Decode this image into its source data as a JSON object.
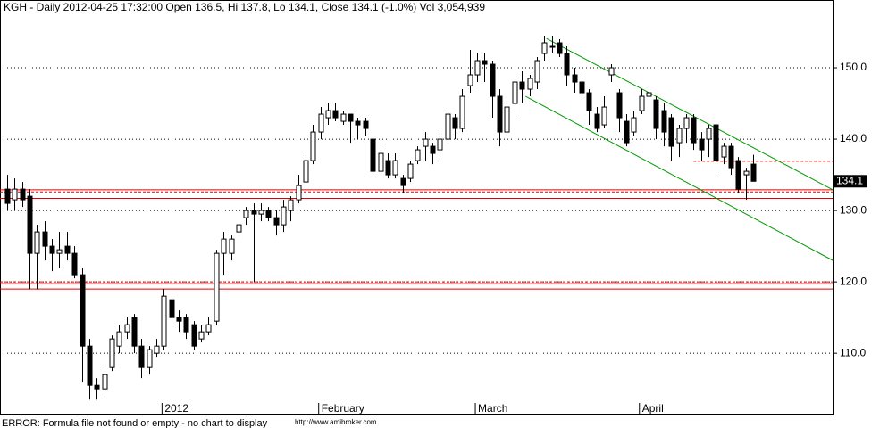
{
  "chart_data": {
    "type": "candlestick",
    "title": "KGH - Daily 2012-04-25 17:32:00 Open 136.5, Hi 137.8, Lo 134.1, Close 134.1 (-1.0%) Vol 3,054,939",
    "footer": "ERROR: Formula file not found or empty - no chart to display",
    "credit": "http://www.amibroker.com",
    "categories": [
      null,
      null,
      null,
      null,
      null,
      null,
      null,
      null,
      null,
      null,
      null,
      null,
      null,
      null,
      null,
      null,
      null,
      null,
      null,
      null,
      null,
      "2012",
      null,
      null,
      null,
      null,
      null,
      null,
      null,
      null,
      null,
      null,
      null,
      null,
      null,
      null,
      null,
      null,
      null,
      null,
      null,
      null,
      "February",
      null,
      null,
      null,
      null,
      null,
      null,
      null,
      null,
      null,
      null,
      null,
      null,
      null,
      null,
      null,
      null,
      null,
      null,
      null,
      null,
      "March",
      null,
      null,
      null,
      null,
      null,
      null,
      null,
      null,
      null,
      null,
      null,
      null,
      null,
      null,
      null,
      null,
      null,
      null,
      null,
      null,
      null,
      "April",
      null,
      null,
      null,
      null,
      null,
      null,
      null,
      null,
      null,
      null,
      null,
      null,
      null,
      null,
      null
    ],
    "open": [
      133,
      131.5,
      133,
      132,
      124,
      127,
      125,
      124,
      125,
      124,
      121,
      111,
      105.5,
      105,
      108,
      111,
      113,
      115,
      111,
      108,
      110,
      111,
      117.5,
      115,
      115,
      114,
      112,
      113,
      114.5,
      124,
      124,
      127,
      129,
      130,
      129.5,
      130,
      129,
      128,
      130,
      131.5,
      134,
      137,
      141,
      143,
      144,
      142.5,
      143.5,
      142.5,
      142.5,
      140,
      135.5,
      137,
      135,
      134.5,
      134.5,
      137,
      139,
      139,
      138.5,
      140,
      143,
      141.5,
      147.5,
      149,
      151,
      150.5,
      146,
      141,
      145,
      148,
      147,
      148,
      152,
      153,
      153.5,
      152,
      149,
      148,
      146.5,
      143.5,
      142,
      149,
      146.5,
      142.5,
      141,
      144,
      146,
      145.5,
      144,
      143,
      139.5,
      141.5,
      143,
      140,
      140,
      142,
      137.5,
      139,
      137,
      135,
      136.5
    ],
    "high": [
      135,
      134.5,
      134,
      133,
      128,
      128.5,
      126,
      127,
      127,
      125,
      122,
      112,
      106.5,
      108,
      112.5,
      114,
      115,
      115.5,
      112,
      111,
      112,
      119,
      118.5,
      116,
      115.5,
      114.5,
      114,
      115,
      124.5,
      127,
      126.5,
      128.5,
      130.5,
      131,
      131,
      130.5,
      130,
      131.5,
      132,
      135,
      138,
      142,
      144.5,
      145,
      145,
      144,
      143.5,
      143,
      143,
      140.5,
      139,
      138,
      138,
      135,
      137,
      139,
      141,
      139.5,
      141,
      144.5,
      143.5,
      147,
      152.5,
      152,
      152,
      151,
      147,
      145,
      149,
      149.5,
      149,
      151.5,
      154.5,
      154.5,
      154,
      153,
      150,
      149,
      147,
      144.5,
      146,
      150.5,
      147,
      143.5,
      144,
      147,
      147,
      146,
      145,
      143.5,
      142,
      143.5,
      143.5,
      141,
      142,
      142.5,
      139.5,
      139.5,
      137.5,
      136,
      137.8
    ],
    "low": [
      130,
      130,
      130.5,
      119,
      119,
      123,
      121.5,
      122,
      123,
      120.5,
      106,
      103.5,
      103.5,
      104,
      107.5,
      110,
      112,
      110,
      106.5,
      107,
      109.5,
      110.5,
      114,
      113,
      112,
      110.5,
      111.5,
      112.5,
      114,
      121,
      123,
      126.5,
      128,
      120,
      128.5,
      128.5,
      126.5,
      127,
      128.5,
      131,
      133,
      136.5,
      140,
      142,
      142.5,
      142,
      139.5,
      140,
      140.5,
      135,
      135,
      134.5,
      134.5,
      132.5,
      134,
      136.5,
      137,
      136.5,
      137,
      139.5,
      140,
      141,
      146.5,
      148,
      148,
      143,
      139,
      139.5,
      143,
      145,
      146,
      147,
      151,
      152,
      151.5,
      147.5,
      146.5,
      144.5,
      142,
      141,
      141.5,
      148,
      141,
      139,
      140.5,
      143.5,
      145.5,
      140,
      139,
      137,
      137.5,
      139.5,
      138.5,
      137,
      137.5,
      135,
      136.5,
      135,
      132.5,
      131.5,
      134.1
    ],
    "close": [
      131,
      133,
      131.5,
      124,
      127,
      125,
      124,
      124.5,
      124,
      121,
      111,
      105.5,
      105,
      107,
      112,
      113,
      114,
      111,
      108,
      110.5,
      111,
      118,
      115,
      114.5,
      113,
      111,
      113,
      114,
      124,
      126,
      126,
      128,
      130,
      129.5,
      130,
      129,
      128,
      130.5,
      131.5,
      133.5,
      137,
      141,
      143.5,
      144,
      143,
      143.5,
      142.5,
      142,
      141.5,
      135.5,
      138,
      135,
      137,
      133.5,
      136.5,
      138.5,
      140,
      138,
      140,
      143.5,
      141.5,
      146,
      149,
      151,
      150.5,
      146,
      141,
      144.5,
      148,
      147,
      148.5,
      151,
      153.5,
      153,
      152,
      149,
      148,
      146.5,
      144,
      141.5,
      144.5,
      150,
      143,
      139.5,
      143,
      146,
      146.5,
      141.5,
      141,
      139,
      141.5,
      143,
      139.5,
      138.5,
      141.5,
      137,
      139,
      136,
      133,
      135.5,
      134.1
    ],
    "up_color": "#ffffff",
    "down_color": "#000000",
    "ylim": [
      101.4,
      159.5
    ],
    "yticks": [
      {
        "value": 110,
        "label": "110.0"
      },
      {
        "value": 120,
        "label": "120.0"
      },
      {
        "value": 130,
        "label": "130.0"
      },
      {
        "value": 140,
        "label": "140.0"
      },
      {
        "value": 150,
        "label": "150.0"
      }
    ],
    "grid": true,
    "hlines": [
      {
        "value": 132.9,
        "color": "#e00000",
        "style": "solid"
      },
      {
        "value": 132.6,
        "color": "#e00000",
        "style": "dashed"
      },
      {
        "value": 131.7,
        "color": "#e00000",
        "style": "solid"
      },
      {
        "value": 120,
        "color": "#e00000",
        "style": "dashed"
      },
      {
        "value": 119.75,
        "color": "#e00000",
        "style": "solid"
      },
      {
        "value": 119,
        "color": "#e00000",
        "style": "solid"
      },
      {
        "value": 136.9,
        "color": "#e00000",
        "style": "dashed",
        "from": 92
      }
    ],
    "trendlines": [
      {
        "color": "#009900",
        "x": [
          72.3,
          110.7
        ],
        "y": [
          154.1,
          132.9
        ]
      },
      {
        "color": "#009900",
        "x": [
          69.5,
          110.7
        ],
        "y": [
          146,
          123
        ]
      }
    ]
  }
}
